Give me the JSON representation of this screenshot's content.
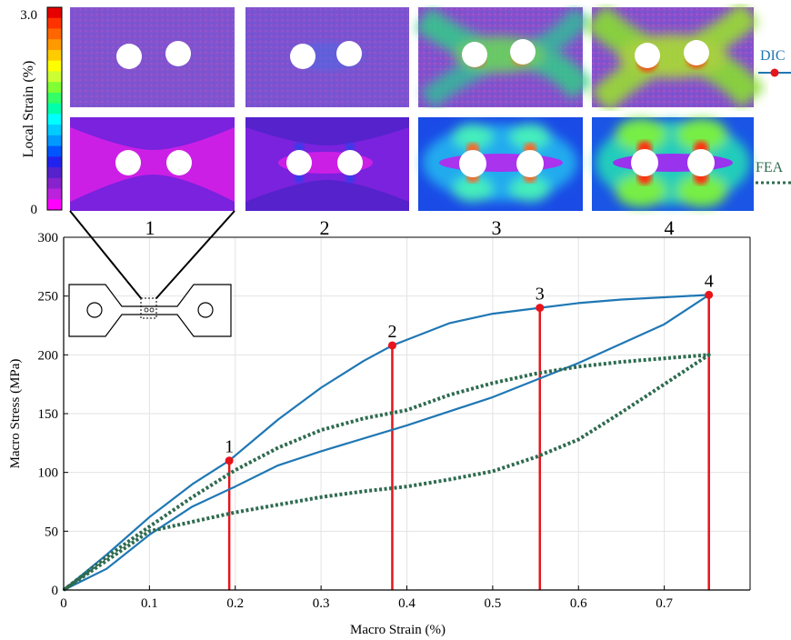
{
  "colorbar": {
    "label": "Local Strain (%)",
    "max_label": "3.0",
    "min_label": "0",
    "colors": [
      "#e60000",
      "#ff3300",
      "#ff6600",
      "#ff9900",
      "#ffcc00",
      "#ffff00",
      "#ccff33",
      "#80ff33",
      "#33ff66",
      "#00ffaa",
      "#00ffff",
      "#00ccff",
      "#0099ff",
      "#0055ff",
      "#2222ee",
      "#5522cc",
      "#8822cc",
      "#bb22dd",
      "#ff00ff"
    ]
  },
  "panels": {
    "labels": [
      "1",
      "2",
      "3",
      "4"
    ],
    "legend": {
      "dic": "DIC",
      "fea": "FEA",
      "dic_color": "#1f77b4",
      "fea_color": "#2e6b4f",
      "marker_color": "#e8141b"
    }
  },
  "chart_data": {
    "type": "line",
    "title": "",
    "xlabel": "Macro Strain (%)",
    "ylabel": "Macro Stress (MPa)",
    "xlim": [
      0,
      0.8
    ],
    "ylim": [
      0,
      300
    ],
    "xticks": [
      "0",
      "0.1",
      "0.2",
      "0.3",
      "0.4",
      "0.5",
      "0.6",
      "0.7"
    ],
    "xtick_values": [
      0,
      0.1,
      0.2,
      0.3,
      0.4,
      0.5,
      0.6,
      0.7
    ],
    "yticks": [
      "0",
      "50",
      "100",
      "150",
      "200",
      "250",
      "300"
    ],
    "ytick_values": [
      0,
      50,
      100,
      150,
      200,
      250,
      300
    ],
    "grid": true,
    "series": [
      {
        "name": "DIC",
        "style": "solid",
        "color": "#1f77b4",
        "x": [
          0,
          0.05,
          0.1,
          0.15,
          0.193,
          0.25,
          0.3,
          0.35,
          0.383,
          0.45,
          0.5,
          0.555,
          0.6,
          0.65,
          0.7,
          0.752,
          0.7,
          0.6,
          0.5,
          0.4,
          0.3,
          0.25,
          0.2,
          0.15,
          0.1,
          0.05,
          0
        ],
        "y": [
          0,
          30,
          62,
          90,
          110,
          145,
          172,
          195,
          208,
          227,
          235,
          240,
          244,
          247,
          249,
          251,
          226,
          193,
          164,
          140,
          118,
          106,
          88,
          71,
          47,
          18,
          0
        ]
      },
      {
        "name": "FEA",
        "style": "dotted",
        "color": "#2e6b4f",
        "x": [
          0,
          0.05,
          0.1,
          0.15,
          0.2,
          0.25,
          0.3,
          0.35,
          0.4,
          0.45,
          0.5,
          0.55,
          0.6,
          0.65,
          0.7,
          0.752,
          0.7,
          0.65,
          0.6,
          0.55,
          0.5,
          0.45,
          0.4,
          0.35,
          0.3,
          0.2,
          0.1,
          0.05,
          0
        ],
        "y": [
          0,
          28,
          54,
          79,
          102,
          121,
          136,
          146,
          153,
          166,
          176,
          184,
          190,
          194,
          197,
          200,
          175,
          151,
          128,
          113,
          101,
          94,
          88,
          84,
          79,
          66,
          50,
          25,
          0
        ]
      }
    ],
    "markers": [
      {
        "label": "1",
        "x": 0.193,
        "y": 110
      },
      {
        "label": "2",
        "x": 0.383,
        "y": 208
      },
      {
        "label": "3",
        "x": 0.555,
        "y": 240
      },
      {
        "label": "4",
        "x": 0.752,
        "y": 251
      }
    ]
  }
}
